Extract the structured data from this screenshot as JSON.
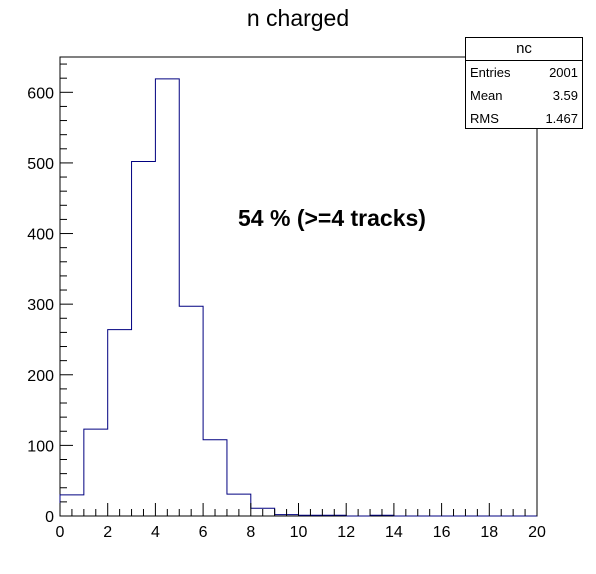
{
  "chart_data": {
    "type": "bar",
    "style": "step-histogram",
    "title": "n charged",
    "xlabel": "",
    "ylabel": "",
    "xlim": [
      0,
      20
    ],
    "ylim": [
      0,
      650
    ],
    "bin_width": 1,
    "x_bin_edges": [
      0,
      1,
      2,
      3,
      4,
      5,
      6,
      7,
      8,
      9,
      10,
      11,
      12,
      13,
      14,
      15,
      16,
      17,
      18,
      19,
      20
    ],
    "values": [
      30,
      123,
      264,
      502,
      619,
      297,
      108,
      31,
      11,
      2,
      1,
      1,
      0,
      1,
      0,
      0,
      0,
      0,
      0,
      0
    ],
    "x_ticks": [
      0,
      2,
      4,
      6,
      8,
      10,
      12,
      14,
      16,
      18,
      20
    ],
    "x_tick_labels": [
      "0",
      "2",
      "4",
      "6",
      "8",
      "10",
      "12",
      "14",
      "16",
      "18",
      "20"
    ],
    "y_ticks": [
      0,
      100,
      200,
      300,
      400,
      500,
      600
    ],
    "y_tick_labels": [
      "0",
      "100",
      "200",
      "300",
      "400",
      "500",
      "600"
    ],
    "line_color": "#000080",
    "grid": false,
    "annotation": "54 % (>=4 tracks)",
    "stats_box": {
      "name": "nc",
      "rows": [
        {
          "label": "Entries",
          "value": "2001"
        },
        {
          "label": "Mean",
          "value": "3.59"
        },
        {
          "label": "RMS",
          "value": "1.467"
        }
      ]
    }
  }
}
